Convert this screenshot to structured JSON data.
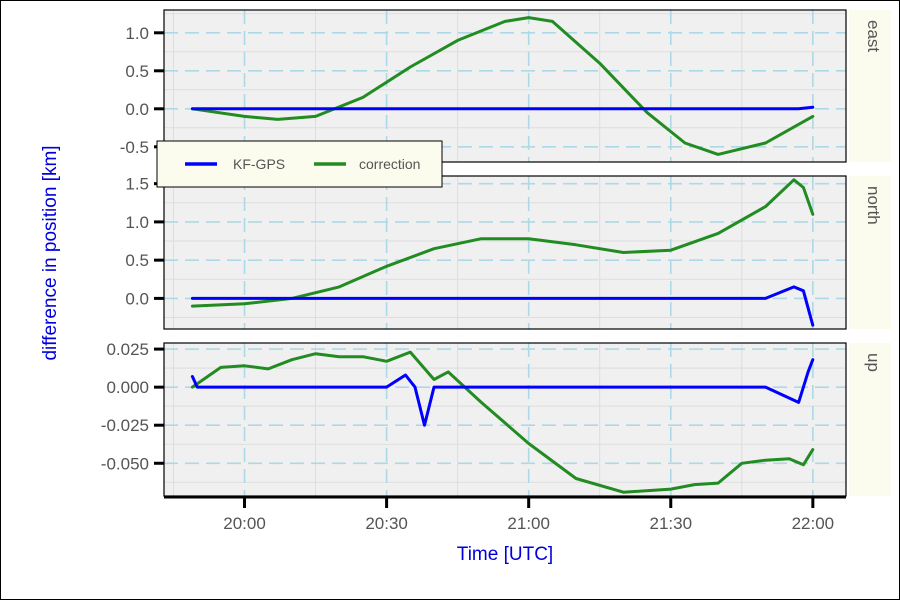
{
  "chart_data": {
    "type": "line",
    "xlabel": "Time [UTC]",
    "ylabel": "difference in position [km]",
    "x_ticks": [
      "20:00",
      "20:30",
      "21:00",
      "21:30",
      "22:00"
    ],
    "x_tick_minutes": [
      0,
      30,
      60,
      90,
      120
    ],
    "xlim_minutes": [
      -17,
      127
    ],
    "legend": {
      "placement": "inside-top-left",
      "entries": [
        "KF-GPS",
        "correction"
      ]
    },
    "colors": {
      "KF-GPS": "#0000ff",
      "correction": "#228b22",
      "panel_bg": "#f0f0f0",
      "strip_bg": "#fcfcee",
      "grid_major": "#add8e6",
      "axis_title": "#0000dd"
    },
    "panels": [
      {
        "name": "east",
        "ylim": [
          -0.7,
          1.3
        ],
        "y_ticks": [
          1.0,
          0.5,
          0.0,
          -0.5
        ],
        "y_tick_labels": [
          "1.0",
          "0.5",
          "0.0",
          "-0.5"
        ],
        "series": [
          {
            "name": "KF-GPS",
            "x": [
              -11,
              0,
              10,
              20,
              34,
              45,
              60,
              75,
              90,
              105,
              117,
              120
            ],
            "y": [
              0.0,
              0.0,
              0.0,
              0.0,
              0.0,
              0.0,
              0.0,
              0.0,
              0.0,
              0.0,
              0.0,
              0.02
            ]
          },
          {
            "name": "correction",
            "x": [
              -11,
              0,
              7,
              15,
              25,
              35,
              45,
              55,
              60,
              65,
              75,
              85,
              93,
              100,
              110,
              120
            ],
            "y": [
              0.0,
              -0.1,
              -0.14,
              -0.1,
              0.15,
              0.55,
              0.9,
              1.15,
              1.2,
              1.15,
              0.6,
              -0.05,
              -0.45,
              -0.6,
              -0.45,
              -0.1
            ]
          }
        ]
      },
      {
        "name": "north",
        "ylim": [
          -0.4,
          1.6
        ],
        "y_ticks": [
          1.5,
          1.0,
          0.5,
          0.0
        ],
        "y_tick_labels": [
          "1.5",
          "1.0",
          "0.5",
          "0.0"
        ],
        "series": [
          {
            "name": "KF-GPS",
            "x": [
              -11,
              0,
              20,
              34,
              60,
              90,
              110,
              116,
              118,
              120
            ],
            "y": [
              0.0,
              0.0,
              0.0,
              0.0,
              0.0,
              0.0,
              0.0,
              0.15,
              0.1,
              -0.35
            ]
          },
          {
            "name": "correction",
            "x": [
              -11,
              0,
              10,
              20,
              30,
              40,
              50,
              60,
              70,
              80,
              90,
              100,
              110,
              116,
              118,
              120
            ],
            "y": [
              -0.1,
              -0.07,
              0.0,
              0.15,
              0.42,
              0.65,
              0.78,
              0.78,
              0.7,
              0.6,
              0.63,
              0.85,
              1.2,
              1.55,
              1.45,
              1.1
            ]
          }
        ]
      },
      {
        "name": "up",
        "ylim": [
          -0.0715,
          0.029
        ],
        "y_ticks": [
          0.025,
          0.0,
          -0.025,
          -0.05
        ],
        "y_tick_labels": [
          "0.025",
          "0.000",
          "-0.025",
          "-0.050"
        ],
        "series": [
          {
            "name": "KF-GPS",
            "x": [
              -11,
              -10,
              0,
              10,
              20,
              30,
              34,
              36,
              38,
              40,
              50,
              60,
              70,
              80,
              90,
              100,
              110,
              117,
              118,
              119,
              120
            ],
            "y": [
              0.007,
              0.0,
              0.0,
              0.0,
              0.0,
              0.0,
              0.008,
              0.0,
              -0.025,
              0.0,
              0.0,
              0.0,
              0.0,
              0.0,
              0.0,
              0.0,
              0.0,
              -0.01,
              0.0,
              0.01,
              0.018
            ]
          },
          {
            "name": "correction",
            "x": [
              -11,
              -5,
              0,
              5,
              10,
              15,
              20,
              25,
              30,
              35,
              40,
              43,
              50,
              60,
              70,
              80,
              90,
              95,
              100,
              105,
              110,
              115,
              118,
              120
            ],
            "y": [
              0.0,
              0.013,
              0.014,
              0.012,
              0.018,
              0.022,
              0.02,
              0.02,
              0.017,
              0.023,
              0.005,
              0.01,
              -0.01,
              -0.037,
              -0.06,
              -0.069,
              -0.067,
              -0.064,
              -0.063,
              -0.05,
              -0.048,
              -0.047,
              -0.051,
              -0.041
            ]
          }
        ]
      }
    ]
  }
}
